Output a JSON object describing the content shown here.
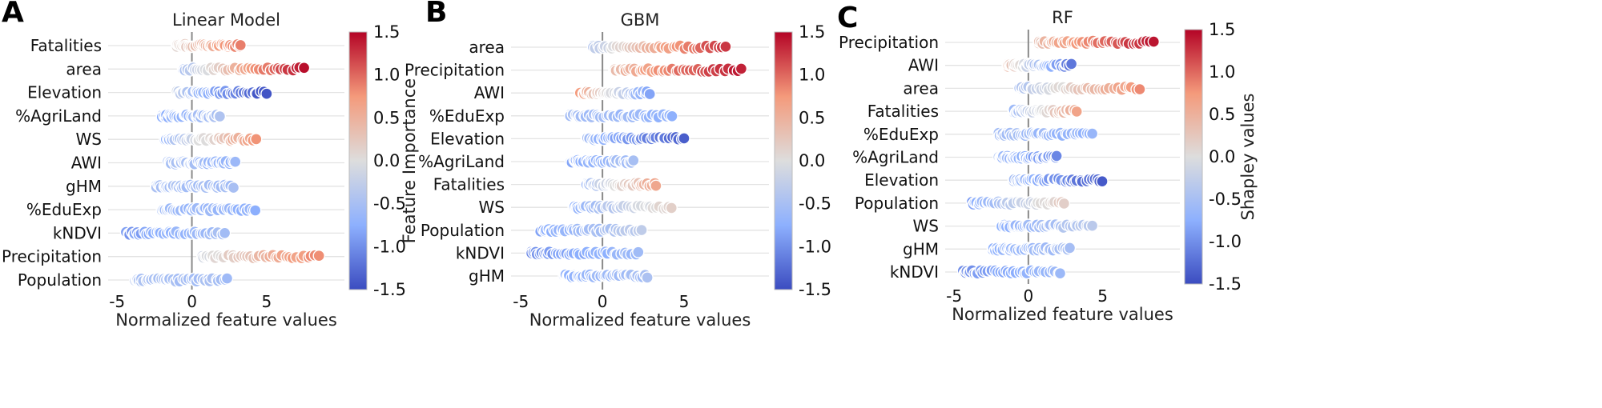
{
  "colors": {
    "low": "#3b4cc0",
    "mid": "#dddddd",
    "high": "#b40426",
    "grid": "#e3e3e3",
    "zero_line": "#8a8a8a"
  },
  "chart_data": [
    {
      "type": "scatter",
      "panel_label": "A",
      "title": "Linear Model",
      "xlabel": "Normalized feature values",
      "colorbar_label": "Feature Importance",
      "colorbar_ticks": [
        "1.5",
        "1.0",
        "0.5",
        "0.0",
        "-0.5",
        "-1.0",
        "-1.5"
      ],
      "colorbar_range": [
        -1.5,
        1.5
      ],
      "xlim": [
        -5.6,
        10.2
      ],
      "xticks": [
        {
          "value": -5,
          "label": "-5"
        },
        {
          "value": 0,
          "label": "0"
        },
        {
          "value": 5,
          "label": "5"
        }
      ],
      "features": [
        {
          "name": "Fatalities",
          "x_range": [
            -1.0,
            3.3
          ],
          "importance": [
            0.05,
            0.9
          ]
        },
        {
          "name": "area",
          "x_range": [
            -0.6,
            7.5
          ],
          "importance": [
            -0.55,
            1.45
          ]
        },
        {
          "name": "Elevation",
          "x_range": [
            -1.0,
            5.0
          ],
          "importance": [
            -0.2,
            -1.45
          ]
        },
        {
          "name": "%AgriLand",
          "x_range": [
            -2.0,
            1.9
          ],
          "importance": [
            -0.8,
            -0.45
          ]
        },
        {
          "name": "WS",
          "x_range": [
            -1.8,
            4.3
          ],
          "importance": [
            -0.75,
            0.75
          ]
        },
        {
          "name": "AWI",
          "x_range": [
            -1.6,
            2.9
          ],
          "importance": [
            -0.5,
            -0.65
          ]
        },
        {
          "name": "gHM",
          "x_range": [
            -2.4,
            2.8
          ],
          "importance": [
            -0.5,
            -0.55
          ]
        },
        {
          "name": "%EduExp",
          "x_range": [
            -2.0,
            4.3
          ],
          "importance": [
            -0.55,
            -0.7
          ]
        },
        {
          "name": "kNDVI",
          "x_range": [
            -4.4,
            2.2
          ],
          "importance": [
            -0.95,
            -0.5
          ]
        },
        {
          "name": "Precipitation",
          "x_range": [
            0.7,
            8.5
          ],
          "importance": [
            -0.15,
            0.85
          ]
        },
        {
          "name": "Population",
          "x_range": [
            -3.8,
            2.4
          ],
          "importance": [
            -0.45,
            -0.55
          ]
        }
      ]
    },
    {
      "type": "scatter",
      "panel_label": "B",
      "title": "GBM",
      "xlabel": "Normalized feature values",
      "colorbar_label": "",
      "colorbar_ticks": [
        "1.5",
        "1.0",
        "0.5",
        "0.0",
        "-0.5",
        "-1.0",
        "-1.5"
      ],
      "colorbar_range": [
        -1.5,
        1.5
      ],
      "xlim": [
        -5.6,
        10.2
      ],
      "xticks": [
        {
          "value": -5,
          "label": "-5"
        },
        {
          "value": 0,
          "label": "0"
        },
        {
          "value": 5,
          "label": "5"
        }
      ],
      "features": [
        {
          "name": "area",
          "x_range": [
            -0.6,
            7.6
          ],
          "importance": [
            -0.4,
            1.3
          ]
        },
        {
          "name": "Precipitation",
          "x_range": [
            0.7,
            8.5
          ],
          "importance": [
            0.3,
            1.4
          ]
        },
        {
          "name": "AWI",
          "x_range": [
            -1.4,
            2.9
          ],
          "importance": [
            0.8,
            -0.8
          ]
        },
        {
          "name": "%EduExp",
          "x_range": [
            -2.0,
            4.3
          ],
          "importance": [
            -0.5,
            -0.7
          ]
        },
        {
          "name": "Elevation",
          "x_range": [
            -1.0,
            5.0
          ],
          "importance": [
            -0.5,
            -1.35
          ]
        },
        {
          "name": "%AgriLand",
          "x_range": [
            -2.0,
            1.9
          ],
          "importance": [
            -0.85,
            -0.5
          ]
        },
        {
          "name": "Fatalities",
          "x_range": [
            -1.0,
            3.3
          ],
          "importance": [
            -0.6,
            0.6
          ]
        },
        {
          "name": "WS",
          "x_range": [
            -1.8,
            4.3
          ],
          "importance": [
            -0.8,
            0.15
          ]
        },
        {
          "name": "Population",
          "x_range": [
            -3.8,
            2.4
          ],
          "importance": [
            -0.85,
            -0.3
          ]
        },
        {
          "name": "kNDVI",
          "x_range": [
            -4.4,
            2.2
          ],
          "importance": [
            -1.0,
            -0.6
          ]
        },
        {
          "name": "gHM",
          "x_range": [
            -2.4,
            2.8
          ],
          "importance": [
            -0.75,
            -0.5
          ]
        }
      ]
    },
    {
      "type": "scatter",
      "panel_label": "C",
      "title": "RF",
      "xlabel": "Normalized feature values",
      "colorbar_label": "Shapley values",
      "colorbar_ticks": [
        "1.5",
        "1.0",
        "0.5",
        "0.0",
        "-0.5",
        "-1.0",
        "-1.5"
      ],
      "colorbar_range": [
        -1.5,
        1.5
      ],
      "xlim": [
        -5.6,
        10.2
      ],
      "xticks": [
        {
          "value": -5,
          "label": "-5"
        },
        {
          "value": 0,
          "label": "0"
        },
        {
          "value": 5,
          "label": "5"
        }
      ],
      "features": [
        {
          "name": "Precipitation",
          "x_range": [
            0.7,
            8.5
          ],
          "importance": [
            0.3,
            1.4
          ]
        },
        {
          "name": "AWI",
          "x_range": [
            -1.4,
            2.9
          ],
          "importance": [
            0.5,
            -1.2
          ]
        },
        {
          "name": "area",
          "x_range": [
            -0.6,
            7.5
          ],
          "importance": [
            -0.5,
            0.8
          ]
        },
        {
          "name": "Fatalities",
          "x_range": [
            -1.0,
            3.3
          ],
          "importance": [
            -0.7,
            0.6
          ]
        },
        {
          "name": "%EduExp",
          "x_range": [
            -2.0,
            4.3
          ],
          "importance": [
            -0.5,
            -0.7
          ]
        },
        {
          "name": "%AgriLand",
          "x_range": [
            -2.0,
            1.9
          ],
          "importance": [
            -0.5,
            -1.0
          ]
        },
        {
          "name": "Elevation",
          "x_range": [
            -1.0,
            5.0
          ],
          "importance": [
            -0.5,
            -1.35
          ]
        },
        {
          "name": "Population",
          "x_range": [
            -3.8,
            2.4
          ],
          "importance": [
            -0.85,
            0.2
          ]
        },
        {
          "name": "WS",
          "x_range": [
            -1.8,
            4.3
          ],
          "importance": [
            -0.8,
            -0.3
          ]
        },
        {
          "name": "gHM",
          "x_range": [
            -2.4,
            2.8
          ],
          "importance": [
            -0.75,
            -0.5
          ]
        },
        {
          "name": "kNDVI",
          "x_range": [
            -4.4,
            2.2
          ],
          "importance": [
            -1.0,
            -0.6
          ]
        }
      ]
    }
  ]
}
